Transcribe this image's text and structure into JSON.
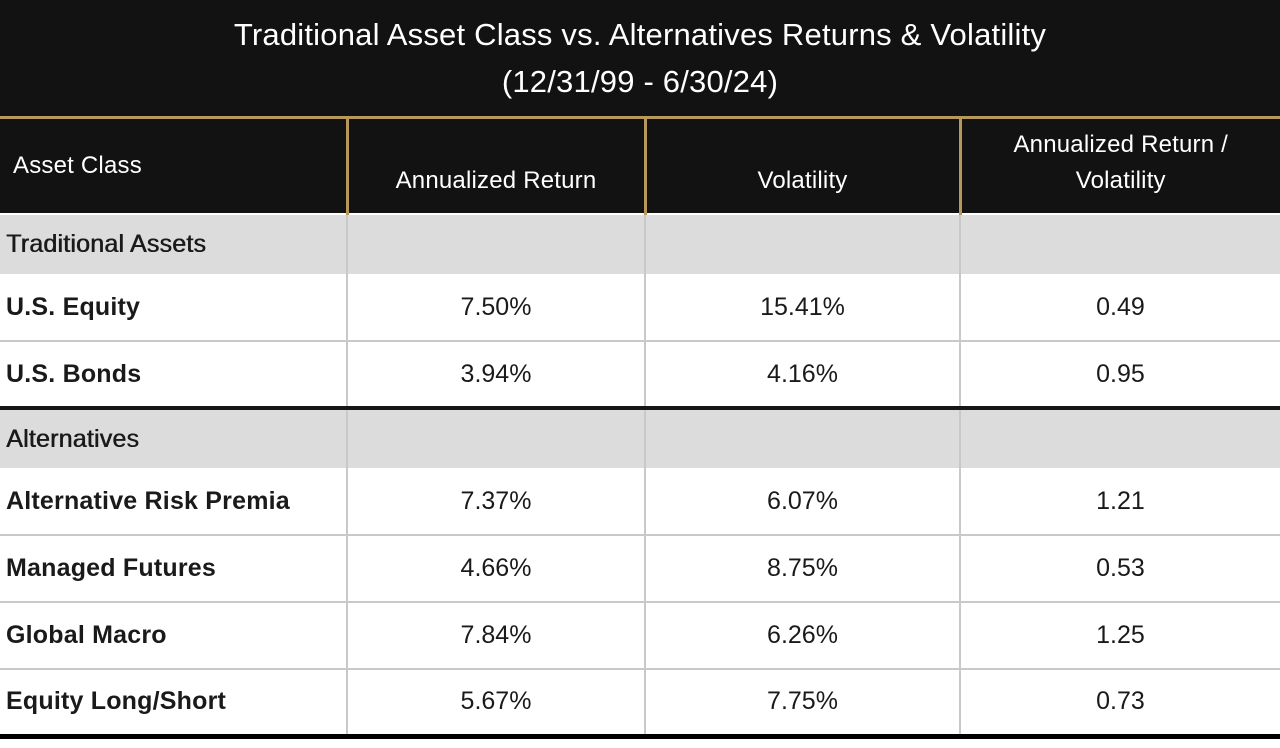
{
  "title": {
    "line1": "Traditional Asset Class vs. Alternatives Returns & Volatility",
    "line2": "(12/31/99 - 6/30/24)"
  },
  "table": {
    "columns": {
      "asset_class": "Asset Class",
      "annualized_return": "Annualized Return",
      "volatility": "Volatility",
      "return_over_volatility": "Annualized Return / Volatility"
    },
    "sections": [
      {
        "label": "Traditional Assets",
        "rows": [
          {
            "name": "U.S. Equity",
            "annualized_return": "7.50%",
            "volatility": "15.41%",
            "ratio": "0.49"
          },
          {
            "name": "U.S. Bonds",
            "annualized_return": "3.94%",
            "volatility": "4.16%",
            "ratio": "0.95"
          }
        ]
      },
      {
        "label": "Alternatives",
        "rows": [
          {
            "name": "Alternative Risk Premia",
            "annualized_return": "7.37%",
            "volatility": "6.07%",
            "ratio": "1.21"
          },
          {
            "name": "Managed Futures",
            "annualized_return": "4.66%",
            "volatility": "8.75%",
            "ratio": "0.53"
          },
          {
            "name": "Global Macro",
            "annualized_return": "7.84%",
            "volatility": "6.26%",
            "ratio": "1.25"
          },
          {
            "name": "Equity Long/Short",
            "annualized_return": "5.67%",
            "volatility": "7.75%",
            "ratio": "0.73"
          }
        ]
      }
    ]
  },
  "chart_data": {
    "type": "table",
    "title": "Traditional Asset Class vs. Alternatives Returns & Volatility",
    "subtitle": "(12/31/99 - 6/30/24)",
    "columns": [
      "Asset Class",
      "Annualized Return",
      "Volatility",
      "Annualized Return / Volatility"
    ],
    "sections": [
      {
        "group": "Traditional Assets",
        "rows": [
          {
            "asset_class": "U.S. Equity",
            "annualized_return_pct": 7.5,
            "volatility_pct": 15.41,
            "return_over_volatility": 0.49
          },
          {
            "asset_class": "U.S. Bonds",
            "annualized_return_pct": 3.94,
            "volatility_pct": 4.16,
            "return_over_volatility": 0.95
          }
        ]
      },
      {
        "group": "Alternatives",
        "rows": [
          {
            "asset_class": "Alternative Risk Premia",
            "annualized_return_pct": 7.37,
            "volatility_pct": 6.07,
            "return_over_volatility": 1.21
          },
          {
            "asset_class": "Managed Futures",
            "annualized_return_pct": 4.66,
            "volatility_pct": 8.75,
            "return_over_volatility": 0.53
          },
          {
            "asset_class": "Global Macro",
            "annualized_return_pct": 7.84,
            "volatility_pct": 6.26,
            "return_over_volatility": 1.25
          },
          {
            "asset_class": "Equity Long/Short",
            "annualized_return_pct": 5.67,
            "volatility_pct": 7.75,
            "return_over_volatility": 0.73
          }
        ]
      }
    ]
  },
  "colors": {
    "header_background": "#121212",
    "gold_border": "#B5985A",
    "section_row_background": "#DCDCDC",
    "grid_line": "#C9C9C9",
    "section_separator": "#161616",
    "bottom_border": "#000000",
    "header_text": "#FFFFFF",
    "body_text": "#1A1A1A"
  }
}
